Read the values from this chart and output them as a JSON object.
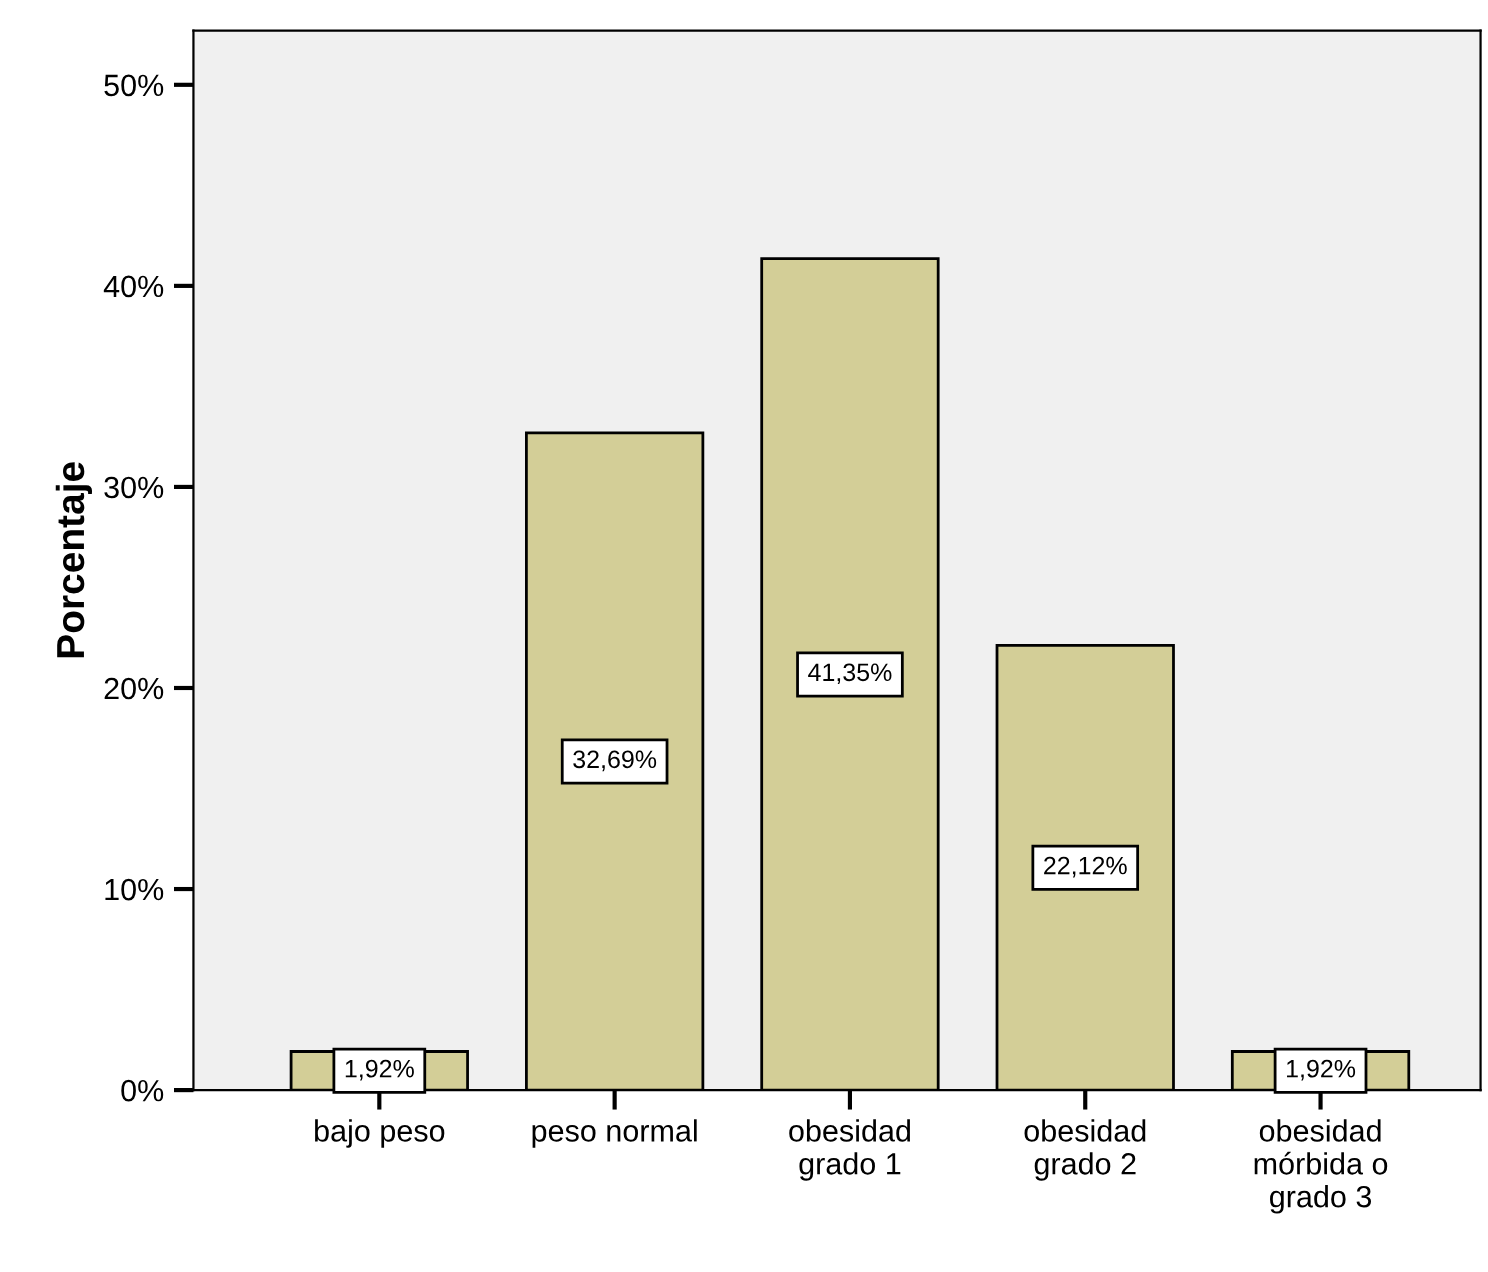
{
  "chart_data": {
    "type": "bar",
    "ylabel": "Porcentaje",
    "categories": [
      "bajo peso",
      "peso normal",
      "obesidad\ngrado 1",
      "obesidad\ngrado 2",
      "obesidad\nmórbida o\ngrado 3"
    ],
    "values": [
      1.92,
      32.69,
      41.35,
      22.12,
      1.92
    ],
    "value_labels": [
      "1,92%",
      "32,69%",
      "41,35%",
      "22,12%",
      "1,92%"
    ],
    "color": "#d3ce97",
    "ylim": [
      0,
      52.7
    ],
    "yticks": [
      {
        "value": 0,
        "label": "0%"
      },
      {
        "value": 10,
        "label": "10%"
      },
      {
        "value": 20,
        "label": "20%"
      },
      {
        "value": 30,
        "label": "30%"
      },
      {
        "value": 40,
        "label": "40%"
      },
      {
        "value": 50,
        "label": "50%"
      }
    ],
    "grid": false,
    "legend": false
  }
}
